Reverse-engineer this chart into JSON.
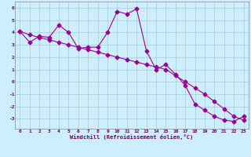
{
  "xlabel": "Windchill (Refroidissement éolien,°C)",
  "line1_x": [
    0,
    1,
    2,
    3,
    4,
    5,
    6,
    7,
    8,
    9,
    10,
    11,
    12,
    13,
    14,
    15,
    16,
    17,
    18,
    19,
    20,
    21,
    22,
    23
  ],
  "line1_y": [
    4.1,
    3.2,
    3.7,
    3.6,
    4.6,
    4.0,
    2.7,
    2.8,
    2.8,
    4.0,
    5.7,
    5.5,
    5.9,
    2.5,
    1.0,
    1.4,
    0.6,
    -0.3,
    -1.8,
    -2.3,
    -2.8,
    -3.1,
    -3.2,
    -2.8
  ],
  "line2_x": [
    0,
    1,
    2,
    3,
    4,
    5,
    6,
    7,
    8,
    9,
    10,
    11,
    12,
    13,
    14,
    15,
    16,
    17,
    18,
    19,
    20,
    21,
    22,
    23
  ],
  "line2_y": [
    4.1,
    3.8,
    3.6,
    3.4,
    3.2,
    3.0,
    2.8,
    2.6,
    2.4,
    2.2,
    2.0,
    1.8,
    1.6,
    1.4,
    1.2,
    1.0,
    0.5,
    0.0,
    -0.5,
    -1.0,
    -1.6,
    -2.2,
    -2.8,
    -3.1
  ],
  "line_color": "#990099",
  "bg_color": "#cceeff",
  "grid_color": "#aacccc",
  "ylim": [
    -3.8,
    6.5
  ],
  "xlim": [
    -0.5,
    23.5
  ],
  "yticks": [
    -3,
    -2,
    -1,
    0,
    1,
    2,
    3,
    4,
    5,
    6
  ],
  "xticks": [
    0,
    1,
    2,
    3,
    4,
    5,
    6,
    7,
    8,
    9,
    10,
    11,
    12,
    13,
    14,
    15,
    16,
    17,
    18,
    19,
    20,
    21,
    22,
    23
  ],
  "marker": "D",
  "marker_size": 2.5,
  "line_width": 0.8
}
